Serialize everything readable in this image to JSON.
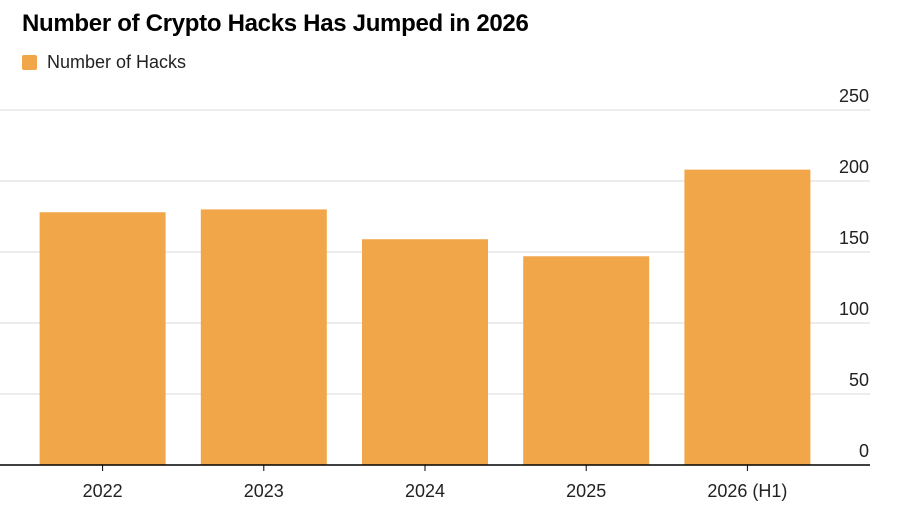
{
  "chart_data": {
    "type": "bar",
    "title": "Number of Crypto Hacks Has Jumped in 2026",
    "categories": [
      "2022",
      "2023",
      "2024",
      "2025",
      "2026 (H1)"
    ],
    "series": [
      {
        "name": "Number of Hacks",
        "values": [
          178,
          180,
          159,
          147,
          208
        ],
        "color": "#F2A64A"
      }
    ],
    "xlabel": "",
    "ylabel": "",
    "ylim": [
      0,
      250
    ],
    "yticks": [
      0,
      50,
      100,
      150,
      200,
      250
    ],
    "y_axis_side": "right",
    "grid": true,
    "legend_position": "top-left"
  }
}
